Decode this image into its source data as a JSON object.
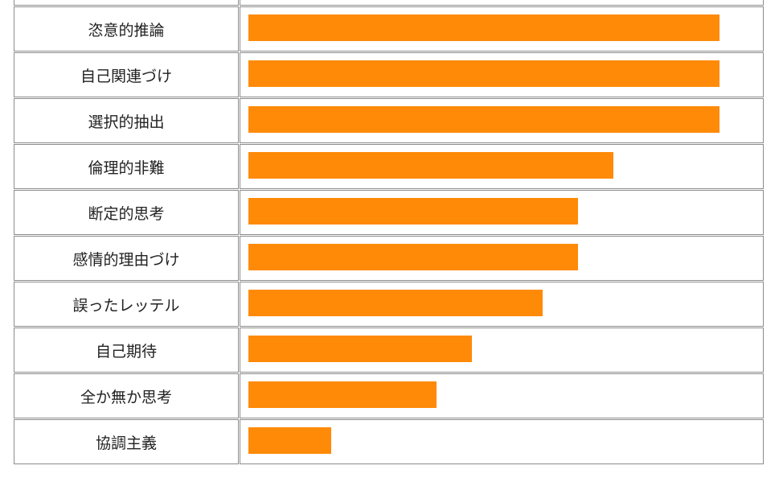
{
  "chart_data": {
    "type": "bar",
    "orientation": "horizontal",
    "categories": [
      "",
      "恣意的推論",
      "自己関連づけ",
      "選択的抽出",
      "倫理的非難",
      "断定的思考",
      "感情的理由づけ",
      "誤ったレッテル",
      "自己期待",
      "全か無か思考",
      "協調主義"
    ],
    "values": [
      null,
      100,
      100,
      100,
      77.5,
      70,
      70,
      62.5,
      47.5,
      40,
      17.5
    ],
    "xlim": [
      0,
      100
    ],
    "grid": false,
    "legend": "none",
    "bar_color": "#ff8a08",
    "border_color": "#8c8c8c"
  }
}
